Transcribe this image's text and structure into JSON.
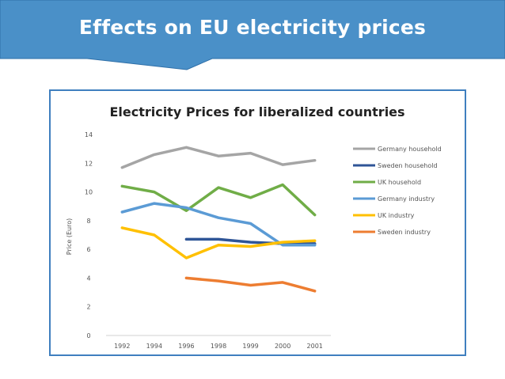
{
  "slide": {
    "title": "Effects on EU electricity prices",
    "banner_color": "#4a90c8",
    "banner_border": "#2e6fa8"
  },
  "chart_data": {
    "type": "line",
    "title": "Electricity Prices for liberalized countries",
    "xlabel": "",
    "ylabel": "Price (Euro)",
    "categories": [
      "1992",
      "1994",
      "1996",
      "1998",
      "1999",
      "2000",
      "2001"
    ],
    "ylim": [
      0,
      14
    ],
    "yticks": [
      0,
      2,
      4,
      6,
      8,
      10,
      12,
      14
    ],
    "grid": false,
    "legend_position": "right",
    "series": [
      {
        "name": "Germany household",
        "color": "#a5a5a5",
        "values": [
          11.7,
          12.6,
          13.1,
          12.5,
          12.7,
          11.9,
          12.2
        ]
      },
      {
        "name": "Sweden household",
        "color": "#2f5597",
        "values": [
          null,
          null,
          6.7,
          6.7,
          6.5,
          6.4,
          6.4
        ]
      },
      {
        "name": "UK household",
        "color": "#70ad47",
        "values": [
          10.4,
          10.0,
          8.7,
          10.3,
          9.6,
          10.5,
          8.4
        ]
      },
      {
        "name": "Germany industry",
        "color": "#5b9bd5",
        "values": [
          8.6,
          9.2,
          8.9,
          8.2,
          7.8,
          6.3,
          6.3
        ]
      },
      {
        "name": " UK industry",
        "color": "#ffc000",
        "values": [
          7.5,
          7.0,
          5.4,
          6.3,
          6.2,
          6.5,
          6.6
        ]
      },
      {
        "name": "Sweden industry",
        "color": "#ed7d31",
        "values": [
          null,
          null,
          4.0,
          3.8,
          3.5,
          3.7,
          3.1
        ]
      }
    ]
  }
}
